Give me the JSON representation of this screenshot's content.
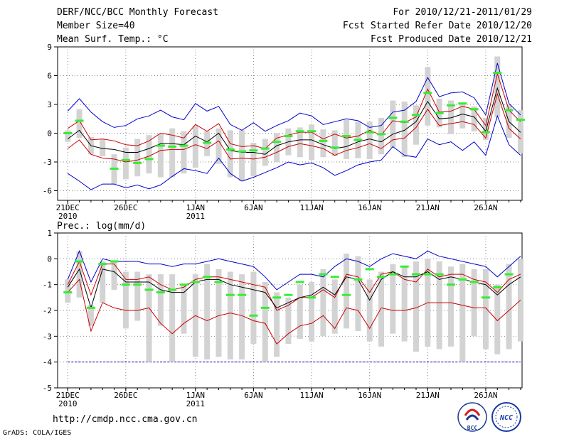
{
  "header": {
    "title": "DERF/NCC/BCC Monthly Forecast",
    "member_size": "Member Size=40",
    "variable1": "Mean Surf. Temp.: °C",
    "for_range": "For 2010/12/21-2011/01/29",
    "fcst_started": "Fcst Started Refer Date 2010/12/20",
    "fcst_produced": "Fcst Produced Date 2010/12/21"
  },
  "footer": {
    "url": "http://cmdp.ncc.cma.gov.cn",
    "credit": "GrADS: COLA/IGES",
    "logo_bcc_text": "BCC",
    "logo_ncc_text": "NCC"
  },
  "colors": {
    "blue": "#0000cc",
    "red": "#cc0000",
    "black": "#000000",
    "green": "#33ee33",
    "box": "#d3d3d3",
    "grid": "#888888"
  },
  "chart_data": [
    {
      "type": "line",
      "title": "Mean Surf. Temp.: °C",
      "x": [
        1,
        2,
        3,
        4,
        5,
        6,
        7,
        8,
        9,
        10,
        11,
        12,
        13,
        14,
        15,
        16,
        17,
        18,
        19,
        20,
        21,
        22,
        23,
        24,
        25,
        26,
        27,
        28,
        29,
        30,
        31,
        32,
        33,
        34,
        35,
        36,
        37,
        38,
        39,
        40
      ],
      "ylim": [
        -7,
        9
      ],
      "yticks": [
        -6,
        -3,
        0,
        3,
        6,
        9
      ],
      "xticks": [
        {
          "day": 1,
          "label": "21DEC",
          "sub": "2010"
        },
        {
          "day": 6,
          "label": "26DEC",
          "sub": ""
        },
        {
          "day": 12,
          "label": "1JAN",
          "sub": "2011"
        },
        {
          "day": 17,
          "label": "6JAN",
          "sub": ""
        },
        {
          "day": 22,
          "label": "11JAN",
          "sub": ""
        },
        {
          "day": 27,
          "label": "16JAN",
          "sub": ""
        },
        {
          "day": 32,
          "label": "21JAN",
          "sub": ""
        },
        {
          "day": 37,
          "label": "26JAN",
          "sub": ""
        }
      ],
      "series": [
        {
          "name": "max",
          "color": "#0000cc",
          "values": [
            2.3,
            3.6,
            2.2,
            1.2,
            0.6,
            0.8,
            1.5,
            1.8,
            2.4,
            1.7,
            1.4,
            3.1,
            2.3,
            2.8,
            0.9,
            0.3,
            1.1,
            0.2,
            0.8,
            1.3,
            2.1,
            1.8,
            0.9,
            1.2,
            1.5,
            1.3,
            0.6,
            0.8,
            2.2,
            2.4,
            3.3,
            5.8,
            3.8,
            4.2,
            4.3,
            3.7,
            1.9,
            7.3,
            3.1,
            1.9
          ]
        },
        {
          "name": "upper",
          "color": "#cc0000",
          "values": [
            0.5,
            1.3,
            -0.7,
            -0.6,
            -0.8,
            -1.2,
            -1.3,
            -0.8,
            0.0,
            -0.2,
            -0.5,
            0.9,
            0.2,
            1.0,
            -1.1,
            -1.4,
            -1.3,
            -1.6,
            -0.5,
            -0.2,
            0.1,
            0.1,
            -0.6,
            -0.1,
            -0.5,
            -0.3,
            0.3,
            -0.2,
            1.3,
            1.1,
            1.7,
            4.6,
            2.2,
            2.3,
            2.8,
            2.5,
            0.8,
            6.2,
            2.4,
            1.2
          ]
        },
        {
          "name": "mean",
          "color": "#000000",
          "values": [
            -0.6,
            0.3,
            -1.3,
            -1.6,
            -1.7,
            -2.0,
            -2.0,
            -1.6,
            -1.1,
            -1.1,
            -1.2,
            -0.3,
            -0.9,
            0.0,
            -1.8,
            -2.0,
            -2.0,
            -2.2,
            -1.3,
            -0.9,
            -0.7,
            -0.7,
            -1.2,
            -1.6,
            -1.4,
            -0.9,
            -0.6,
            -0.9,
            -0.1,
            0.3,
            1.2,
            3.3,
            1.5,
            1.6,
            2.0,
            1.7,
            0.2,
            4.7,
            1.2,
            0.1
          ]
        },
        {
          "name": "lower",
          "color": "#cc0000",
          "values": [
            -1.6,
            -0.7,
            -2.2,
            -2.6,
            -2.7,
            -3.0,
            -2.8,
            -2.4,
            -1.8,
            -1.7,
            -1.7,
            -1.2,
            -1.6,
            -0.8,
            -2.7,
            -2.6,
            -2.7,
            -2.5,
            -2.0,
            -1.4,
            -1.1,
            -1.3,
            -1.6,
            -2.3,
            -1.8,
            -1.5,
            -1.1,
            -1.6,
            -0.7,
            -0.5,
            0.6,
            2.5,
            0.8,
            1.0,
            1.2,
            0.9,
            -0.5,
            4.1,
            0.5,
            -0.6
          ]
        },
        {
          "name": "min",
          "color": "#0000cc",
          "values": [
            -4.2,
            -5.0,
            -5.9,
            -5.3,
            -5.3,
            -5.7,
            -5.4,
            -5.8,
            -5.4,
            -4.5,
            -3.7,
            -3.9,
            -4.2,
            -2.6,
            -4.2,
            -5.0,
            -4.6,
            -4.1,
            -3.6,
            -3.0,
            -3.3,
            -3.1,
            -3.6,
            -4.4,
            -3.9,
            -3.3,
            -3.0,
            -2.8,
            -1.4,
            -2.3,
            -2.5,
            -0.6,
            -1.2,
            -0.9,
            -1.8,
            -0.9,
            -2.3,
            1.8,
            -1.2,
            -2.3
          ]
        }
      ],
      "boxes": [
        [
          -0.9,
          0.3
        ],
        [
          -0.5,
          2.5
        ],
        [
          -2.2,
          -0.4
        ],
        [
          -2.4,
          -0.6
        ],
        [
          -5.3,
          -2.2
        ],
        [
          -4.8,
          -1.5
        ],
        [
          -4.5,
          -0.6
        ],
        [
          -4.2,
          -0.2
        ],
        [
          -4.6,
          -0.1
        ],
        [
          -4.6,
          0.5
        ],
        [
          -4.2,
          0.2
        ],
        [
          -3.6,
          0.8
        ],
        [
          -2.4,
          0.2
        ],
        [
          -3.2,
          0.5
        ],
        [
          -4.6,
          0.3
        ],
        [
          -5.0,
          0.3
        ],
        [
          -4.5,
          -1.0
        ],
        [
          -3.4,
          -0.6
        ],
        [
          -3.0,
          0.0
        ],
        [
          -2.3,
          0.5
        ],
        [
          -2.5,
          0.6
        ],
        [
          -2.8,
          0.9
        ],
        [
          -2.5,
          0.4
        ],
        [
          -2.4,
          0.3
        ],
        [
          -2.7,
          1.4
        ],
        [
          -2.6,
          1.2
        ],
        [
          -2.7,
          1.2
        ],
        [
          -2.2,
          1.6
        ],
        [
          -1.5,
          3.4
        ],
        [
          -2.5,
          3.3
        ],
        [
          -1.2,
          2.9
        ],
        [
          0.8,
          6.9
        ],
        [
          0.6,
          3.6
        ],
        [
          -0.1,
          3.4
        ],
        [
          0.5,
          3.1
        ],
        [
          0.2,
          2.8
        ],
        [
          -0.7,
          1.6
        ],
        [
          1.7,
          8.0
        ],
        [
          -0.5,
          3.0
        ],
        [
          -2.1,
          2.4
        ]
      ],
      "green_marks": [
        0.0,
        1.3,
        null,
        null,
        -3.7,
        -2.8,
        -3.1,
        -2.7,
        -1.3,
        -1.4,
        -1.3,
        null,
        -1.0,
        null,
        -1.7,
        -1.9,
        -1.8,
        -1.6,
        -0.9,
        -0.3,
        0.2,
        0.2,
        -0.8,
        -1.5,
        -0.3,
        -0.7,
        0.1,
        -0.1,
        1.6,
        1.2,
        1.9,
        4.2,
        2.1,
        2.9,
        3.1,
        2.5,
        0.1,
        6.3,
        2.4,
        1.4
      ]
    },
    {
      "type": "line",
      "title": "Prec.: log(mm/d)",
      "x": [
        1,
        2,
        3,
        4,
        5,
        6,
        7,
        8,
        9,
        10,
        11,
        12,
        13,
        14,
        15,
        16,
        17,
        18,
        19,
        20,
        21,
        22,
        23,
        24,
        25,
        26,
        27,
        28,
        29,
        30,
        31,
        32,
        33,
        34,
        35,
        36,
        37,
        38,
        39,
        40
      ],
      "ylim": [
        -5,
        1
      ],
      "yticks": [
        -5,
        -4,
        -3,
        -2,
        -1,
        0,
        1
      ],
      "xticks": [
        {
          "day": 1,
          "label": "21DEC",
          "sub": "2010"
        },
        {
          "day": 6,
          "label": "26DEC",
          "sub": ""
        },
        {
          "day": 12,
          "label": "1JAN",
          "sub": "2011"
        },
        {
          "day": 17,
          "label": "6JAN",
          "sub": ""
        },
        {
          "day": 22,
          "label": "11JAN",
          "sub": ""
        },
        {
          "day": 27,
          "label": "16JAN",
          "sub": ""
        },
        {
          "day": 32,
          "label": "21JAN",
          "sub": ""
        },
        {
          "day": 37,
          "label": "26JAN",
          "sub": ""
        }
      ],
      "reference_line": -4,
      "series": [
        {
          "name": "max",
          "color": "#0000cc",
          "values": [
            -0.8,
            0.3,
            -0.9,
            0.0,
            -0.1,
            -0.1,
            -0.1,
            -0.2,
            -0.2,
            -0.3,
            -0.2,
            -0.2,
            -0.1,
            0.0,
            -0.1,
            -0.2,
            -0.3,
            -0.7,
            -1.2,
            -0.9,
            -0.6,
            -0.6,
            -0.7,
            -0.3,
            0.0,
            -0.1,
            -0.3,
            0.0,
            0.2,
            0.1,
            0.0,
            0.3,
            0.1,
            0.0,
            -0.1,
            -0.2,
            -0.3,
            -0.7,
            -0.3,
            0.1
          ]
        },
        {
          "name": "upper",
          "color": "#cc0000",
          "values": [
            -1.0,
            -0.1,
            -1.4,
            -0.2,
            -0.2,
            -0.8,
            -0.8,
            -0.7,
            -1.0,
            -1.2,
            -1.1,
            -0.8,
            -0.7,
            -0.7,
            -0.8,
            -0.9,
            -1.0,
            -1.1,
            -2.0,
            -1.8,
            -1.5,
            -1.5,
            -1.2,
            -1.5,
            -0.6,
            -0.7,
            -1.3,
            -0.6,
            -0.5,
            -0.8,
            -0.9,
            -0.4,
            -0.7,
            -0.6,
            -0.6,
            -0.8,
            -0.9,
            -1.3,
            -0.8,
            -0.6
          ]
        },
        {
          "name": "mean",
          "color": "#000000",
          "values": [
            -1.1,
            -0.4,
            -1.9,
            -0.4,
            -0.5,
            -0.9,
            -0.9,
            -0.9,
            -1.2,
            -1.3,
            -1.3,
            -0.9,
            -0.8,
            -0.8,
            -1.0,
            -1.1,
            -1.2,
            -1.3,
            -1.9,
            -1.7,
            -1.5,
            -1.4,
            -1.1,
            -1.4,
            -0.7,
            -0.8,
            -1.6,
            -0.8,
            -0.5,
            -0.7,
            -0.7,
            -0.5,
            -0.8,
            -0.7,
            -0.8,
            -0.9,
            -1.0,
            -1.4,
            -1.0,
            -0.7
          ]
        },
        {
          "name": "lower",
          "color": "#cc0000",
          "values": [
            -1.3,
            -0.8,
            -2.8,
            -1.7,
            -1.9,
            -2.0,
            -2.0,
            -1.9,
            -2.5,
            -2.9,
            -2.5,
            -2.2,
            -2.4,
            -2.2,
            -2.1,
            -2.2,
            -2.4,
            -2.5,
            -3.3,
            -2.9,
            -2.6,
            -2.5,
            -2.2,
            -2.7,
            -1.9,
            -2.0,
            -2.7,
            -1.9,
            -2.0,
            -2.0,
            -1.9,
            -1.7,
            -1.7,
            -1.7,
            -1.8,
            -1.9,
            -1.9,
            -2.4,
            -2.0,
            -1.6
          ]
        }
      ],
      "boxes": [
        [
          -1.7,
          -0.8
        ],
        [
          -1.5,
          0.3
        ],
        [
          -2.6,
          -1.8
        ],
        [
          -1.7,
          -0.1
        ],
        [
          -1.2,
          -0.1
        ],
        [
          -2.7,
          -0.5
        ],
        [
          -2.4,
          -0.5
        ],
        [
          -4.0,
          -0.6
        ],
        [
          -2.6,
          -0.6
        ],
        [
          -4.0,
          -0.6
        ],
        [
          -2.9,
          -1.0
        ],
        [
          -3.8,
          -0.6
        ],
        [
          -3.9,
          -0.2
        ],
        [
          -3.8,
          -0.4
        ],
        [
          -3.9,
          -0.5
        ],
        [
          -3.9,
          -0.6
        ],
        [
          -3.3,
          -0.5
        ],
        [
          -4.0,
          -0.9
        ],
        [
          -3.8,
          -1.3
        ],
        [
          -3.3,
          -1.5
        ],
        [
          -3.1,
          -1.0
        ],
        [
          -3.2,
          -0.9
        ],
        [
          -3.0,
          -0.4
        ],
        [
          -2.9,
          -0.8
        ],
        [
          -2.7,
          0.2
        ],
        [
          -2.8,
          0.1
        ],
        [
          -3.2,
          -0.8
        ],
        [
          -3.4,
          -0.5
        ],
        [
          -2.9,
          -0.2
        ],
        [
          -3.2,
          -0.3
        ],
        [
          -3.6,
          -0.1
        ],
        [
          -3.4,
          0.0
        ],
        [
          -3.5,
          -0.1
        ],
        [
          -3.4,
          -0.3
        ],
        [
          -4.0,
          -0.2
        ],
        [
          -3.0,
          -0.4
        ],
        [
          -3.5,
          -0.4
        ],
        [
          -3.7,
          -1.0
        ],
        [
          -3.5,
          -0.2
        ],
        [
          -3.2,
          0.0
        ]
      ],
      "green_marks": [
        -1.3,
        -0.1,
        -1.9,
        -0.2,
        -0.1,
        -1.0,
        -1.0,
        -1.2,
        -1.3,
        -1.2,
        -1.0,
        -0.9,
        -0.7,
        -0.9,
        -1.4,
        -1.4,
        -2.2,
        -1.9,
        -1.5,
        -1.4,
        -0.9,
        -1.5,
        -0.6,
        -0.7,
        -1.4,
        -0.8,
        -0.4,
        -0.7,
        -0.6,
        -0.3,
        -0.6,
        -0.6,
        -0.6,
        -1.0,
        -0.8,
        -0.9,
        -1.5,
        -1.1,
        -0.6,
        null
      ]
    }
  ]
}
